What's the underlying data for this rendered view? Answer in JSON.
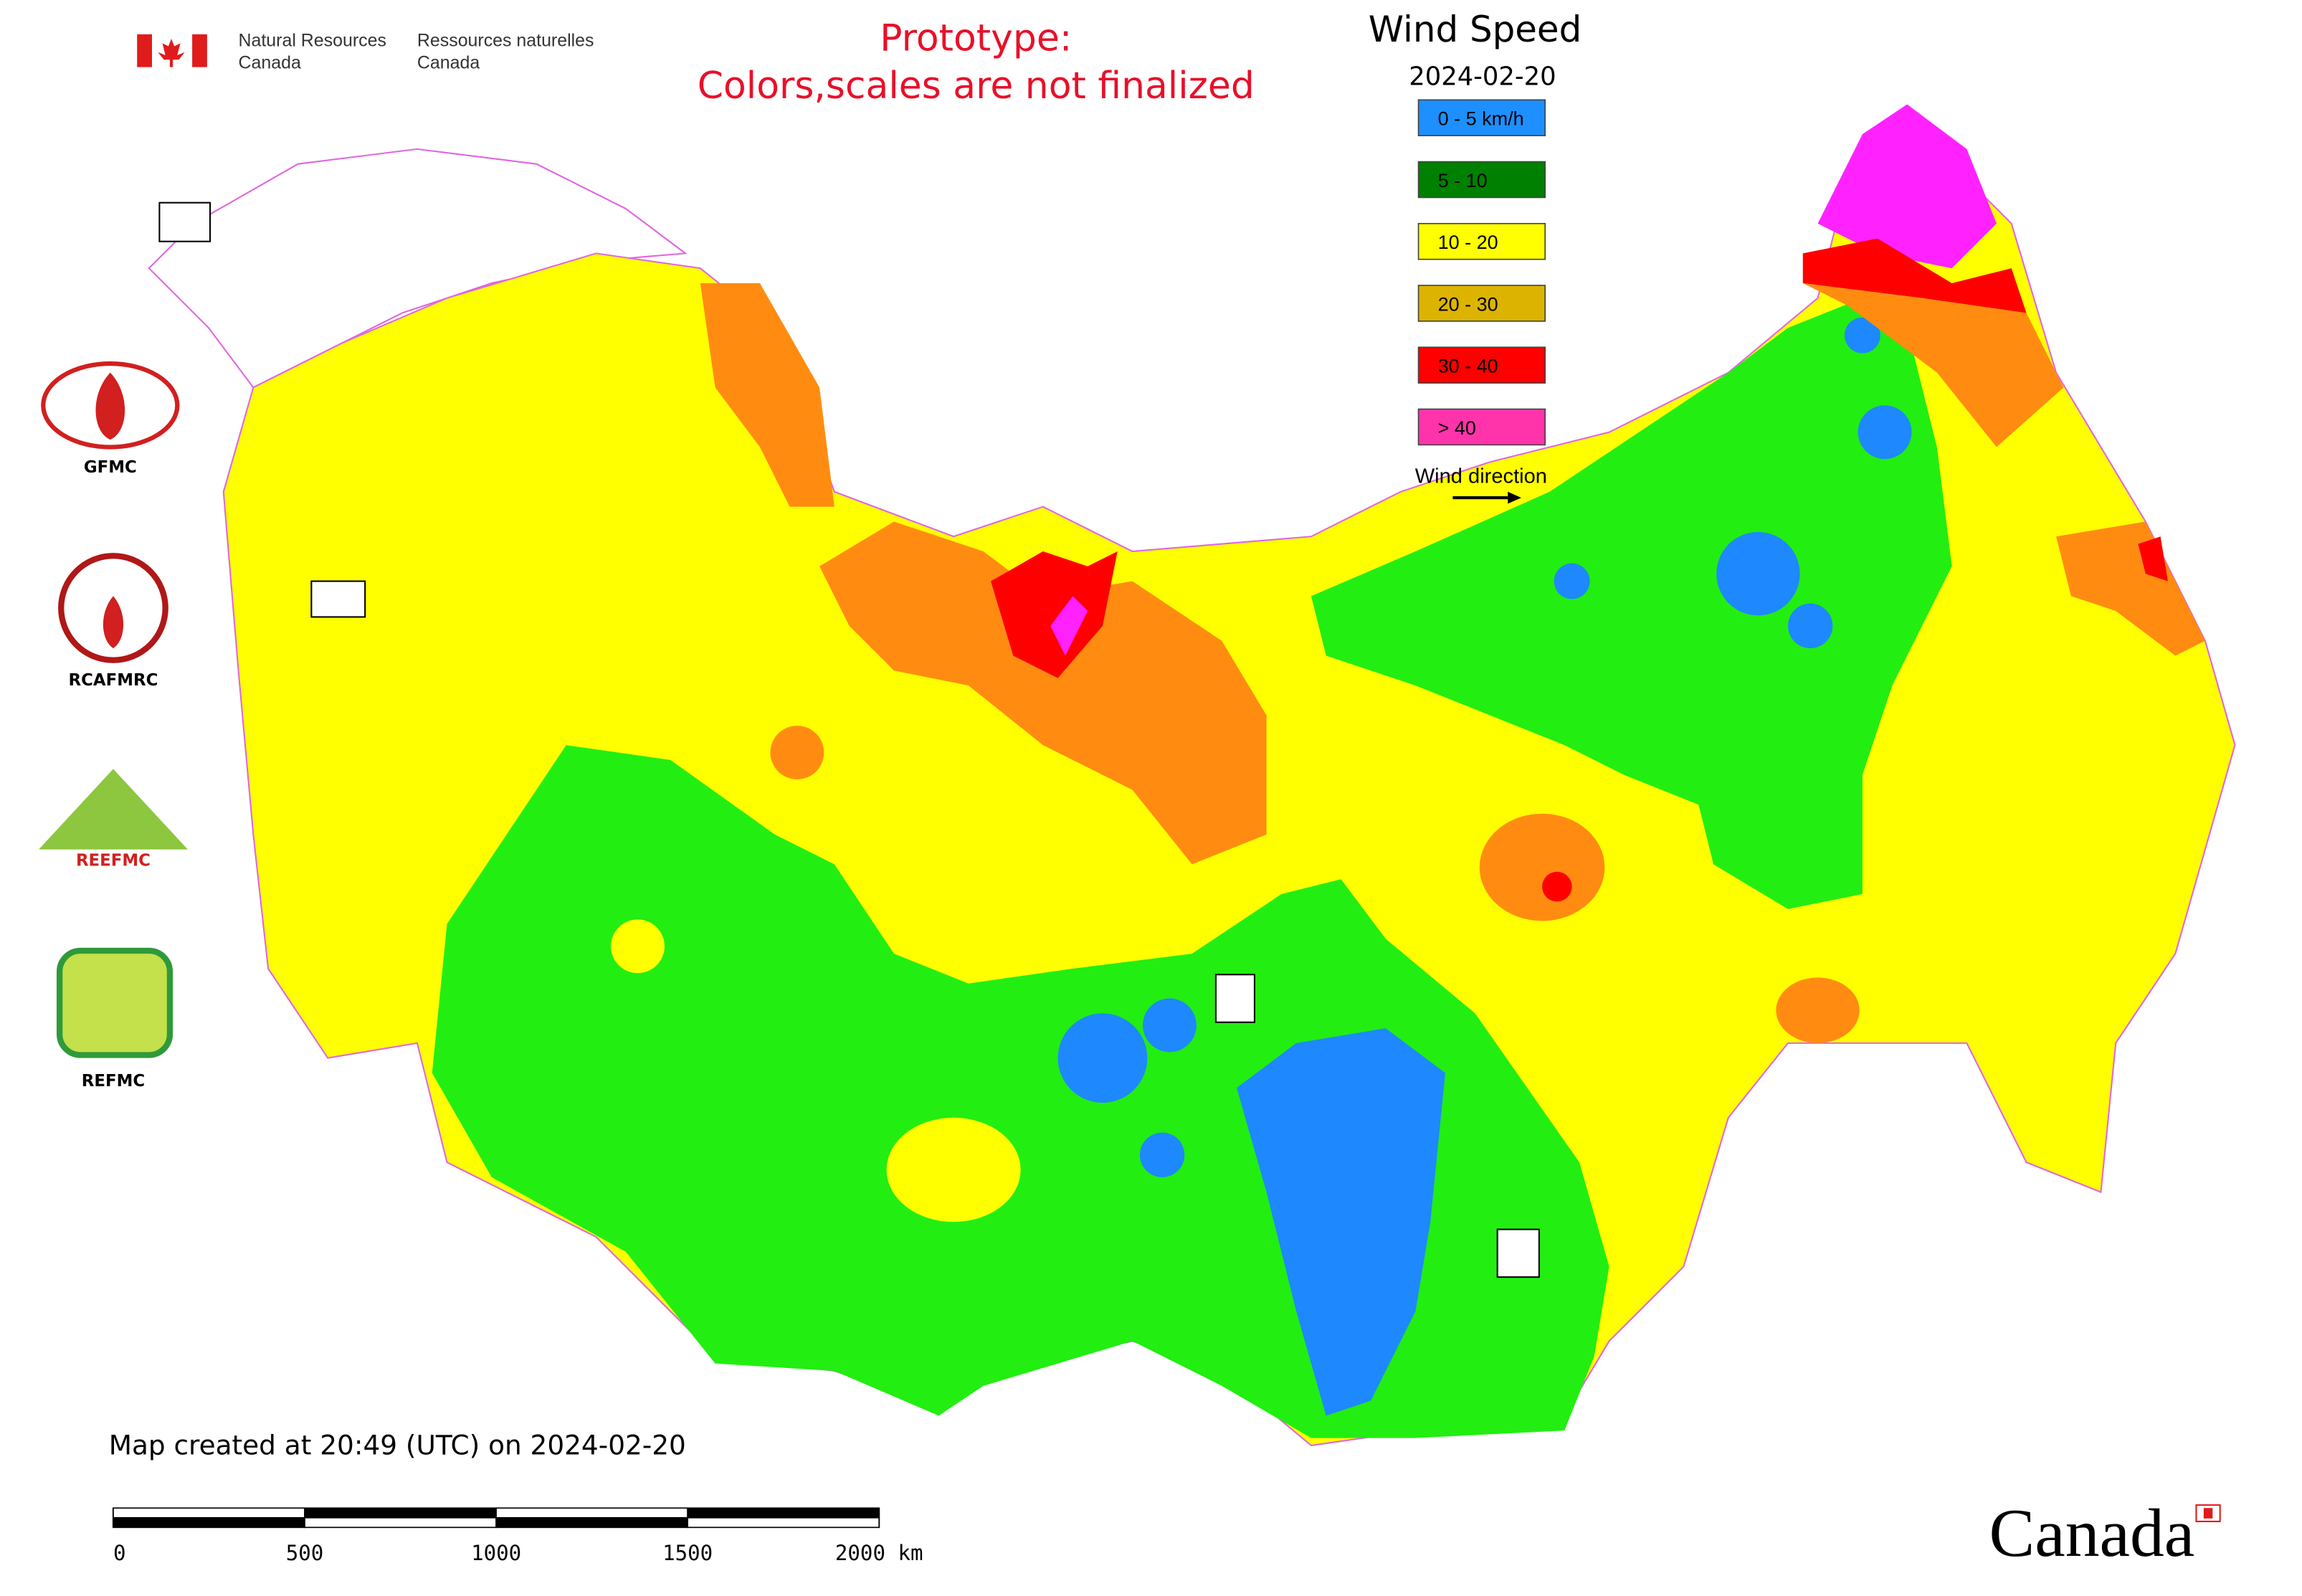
{
  "header": {
    "department_en": [
      "Natural Resources",
      "Canada"
    ],
    "department_fr": [
      "Ressources naturelles",
      "Canada"
    ],
    "notice": [
      "Prototype:",
      "Colors,scales are not finalized"
    ]
  },
  "legend": {
    "title": "Wind Speed",
    "date": "2024-02-20",
    "items": [
      {
        "label": "0 - 5 km/h",
        "color": "#1e8fff"
      },
      {
        "label": "5 - 10",
        "color": "#008000"
      },
      {
        "label": "10 - 20",
        "color": "#ffff00"
      },
      {
        "label": "20 - 30",
        "color": "#dcb400"
      },
      {
        "label": "30 - 40",
        "color": "#ff0000"
      },
      {
        "label": "> 40",
        "color": "#ff33aa"
      }
    ],
    "direction_label": "Wind direction"
  },
  "logos": [
    "GFMC",
    "RCAFMRC",
    "REEFMC",
    "REFMC"
  ],
  "footer": {
    "created": "Map created at 20:49 (UTC) on 2024-02-20",
    "scale_ticks": [
      0,
      500,
      1000,
      1500,
      {
        "value": 2000,
        "label": "2000 km"
      }
    ],
    "wordmark": "Canada"
  }
}
